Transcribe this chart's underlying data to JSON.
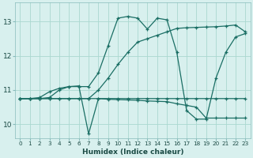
{
  "xlabel": "Humidex (Indice chaleur)",
  "bg_color": "#d8f0ee",
  "grid_color": "#aad8d0",
  "line_color": "#1a6e64",
  "xlim": [
    -0.5,
    23.5
  ],
  "ylim": [
    9.6,
    13.55
  ],
  "yticks": [
    10,
    11,
    12,
    13
  ],
  "xticks": [
    0,
    1,
    2,
    3,
    4,
    5,
    6,
    7,
    8,
    9,
    10,
    11,
    12,
    13,
    14,
    15,
    16,
    17,
    18,
    19,
    20,
    21,
    22,
    23
  ],
  "line1_x": [
    0,
    1,
    2,
    3,
    4,
    5,
    6,
    7,
    8,
    9,
    10,
    11,
    12,
    13,
    14,
    15,
    16,
    17,
    18,
    19,
    20,
    21,
    22,
    23
  ],
  "line1_y": [
    10.75,
    10.75,
    10.78,
    10.95,
    11.05,
    11.1,
    11.12,
    9.72,
    10.75,
    10.75,
    10.75,
    10.75,
    10.75,
    10.75,
    10.75,
    10.75,
    10.75,
    10.75,
    10.75,
    10.75,
    10.75,
    10.75,
    10.75,
    10.75
  ],
  "line2_x": [
    0,
    1,
    2,
    3,
    4,
    5,
    6,
    7,
    8,
    9,
    10,
    11,
    12,
    13,
    14,
    15,
    16,
    17,
    18,
    19,
    20,
    21,
    22,
    23
  ],
  "line2_y": [
    10.75,
    10.75,
    10.75,
    10.75,
    10.75,
    10.75,
    10.75,
    10.75,
    10.75,
    10.73,
    10.72,
    10.71,
    10.7,
    10.68,
    10.67,
    10.66,
    10.6,
    10.55,
    10.5,
    10.18,
    10.18,
    10.18,
    10.18,
    10.18
  ],
  "line3_x": [
    0,
    1,
    2,
    3,
    4,
    5,
    6,
    7,
    8,
    9,
    10,
    11,
    12,
    13,
    14,
    15,
    16,
    17,
    18,
    19,
    20,
    21,
    22,
    23
  ],
  "line3_y": [
    10.75,
    10.75,
    10.75,
    10.75,
    10.75,
    10.75,
    10.75,
    10.75,
    11.0,
    11.35,
    11.75,
    12.1,
    12.4,
    12.5,
    12.6,
    12.7,
    12.8,
    12.82,
    12.83,
    12.84,
    12.85,
    12.87,
    12.9,
    12.7
  ],
  "line4_x": [
    0,
    1,
    2,
    3,
    4,
    5,
    6,
    7,
    8,
    9,
    10,
    11,
    12,
    13,
    14,
    15,
    16,
    17,
    18,
    19,
    20,
    21,
    22,
    23
  ],
  "line4_y": [
    10.75,
    10.75,
    10.75,
    10.78,
    11.0,
    11.1,
    11.1,
    11.1,
    11.5,
    12.3,
    13.1,
    13.15,
    13.1,
    12.78,
    13.1,
    13.05,
    12.1,
    10.4,
    10.15,
    10.15,
    11.35,
    12.1,
    12.55,
    12.65
  ]
}
